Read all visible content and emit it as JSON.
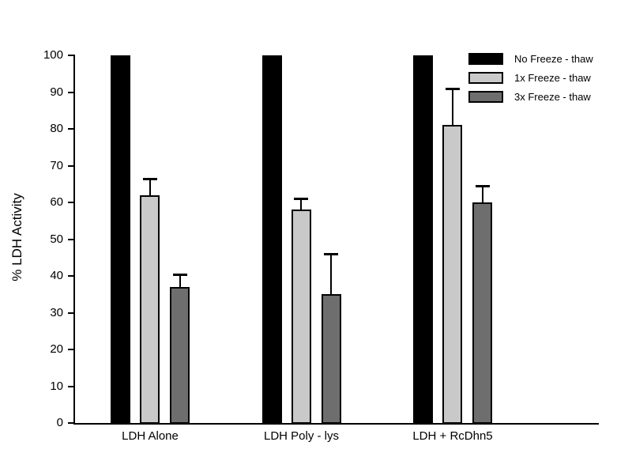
{
  "chart_data": {
    "type": "bar",
    "title": "",
    "xlabel": "",
    "ylabel": "% LDH Activity",
    "ylim": [
      0,
      100
    ],
    "yticks": [
      0,
      10,
      20,
      30,
      40,
      50,
      60,
      70,
      80,
      90,
      100
    ],
    "grid": false,
    "error_bars": true,
    "legend_position": "top-right",
    "categories": [
      "LDH Alone",
      "LDH Poly - lys",
      "LDH + RcDhn5"
    ],
    "series": [
      {
        "name": "No Freeze - thaw",
        "color": "#000000",
        "values": [
          100,
          100,
          100
        ],
        "errors": [
          0,
          0,
          0
        ]
      },
      {
        "name": "1x Freeze - thaw",
        "color": "#c9c9c9",
        "values": [
          62,
          58,
          81
        ],
        "errors": [
          4.5,
          3,
          10
        ]
      },
      {
        "name": "3x Freeze - thaw",
        "color": "#6e6e6e",
        "values": [
          37,
          35,
          60
        ],
        "errors": [
          3.5,
          11,
          4.5
        ]
      }
    ]
  },
  "colors": {
    "background": "#ffffff",
    "axis": "#000000",
    "bar_no_freeze": "#000000",
    "bar_1x_freeze": "#c9c9c9",
    "bar_3x_freeze": "#6e6e6e"
  }
}
